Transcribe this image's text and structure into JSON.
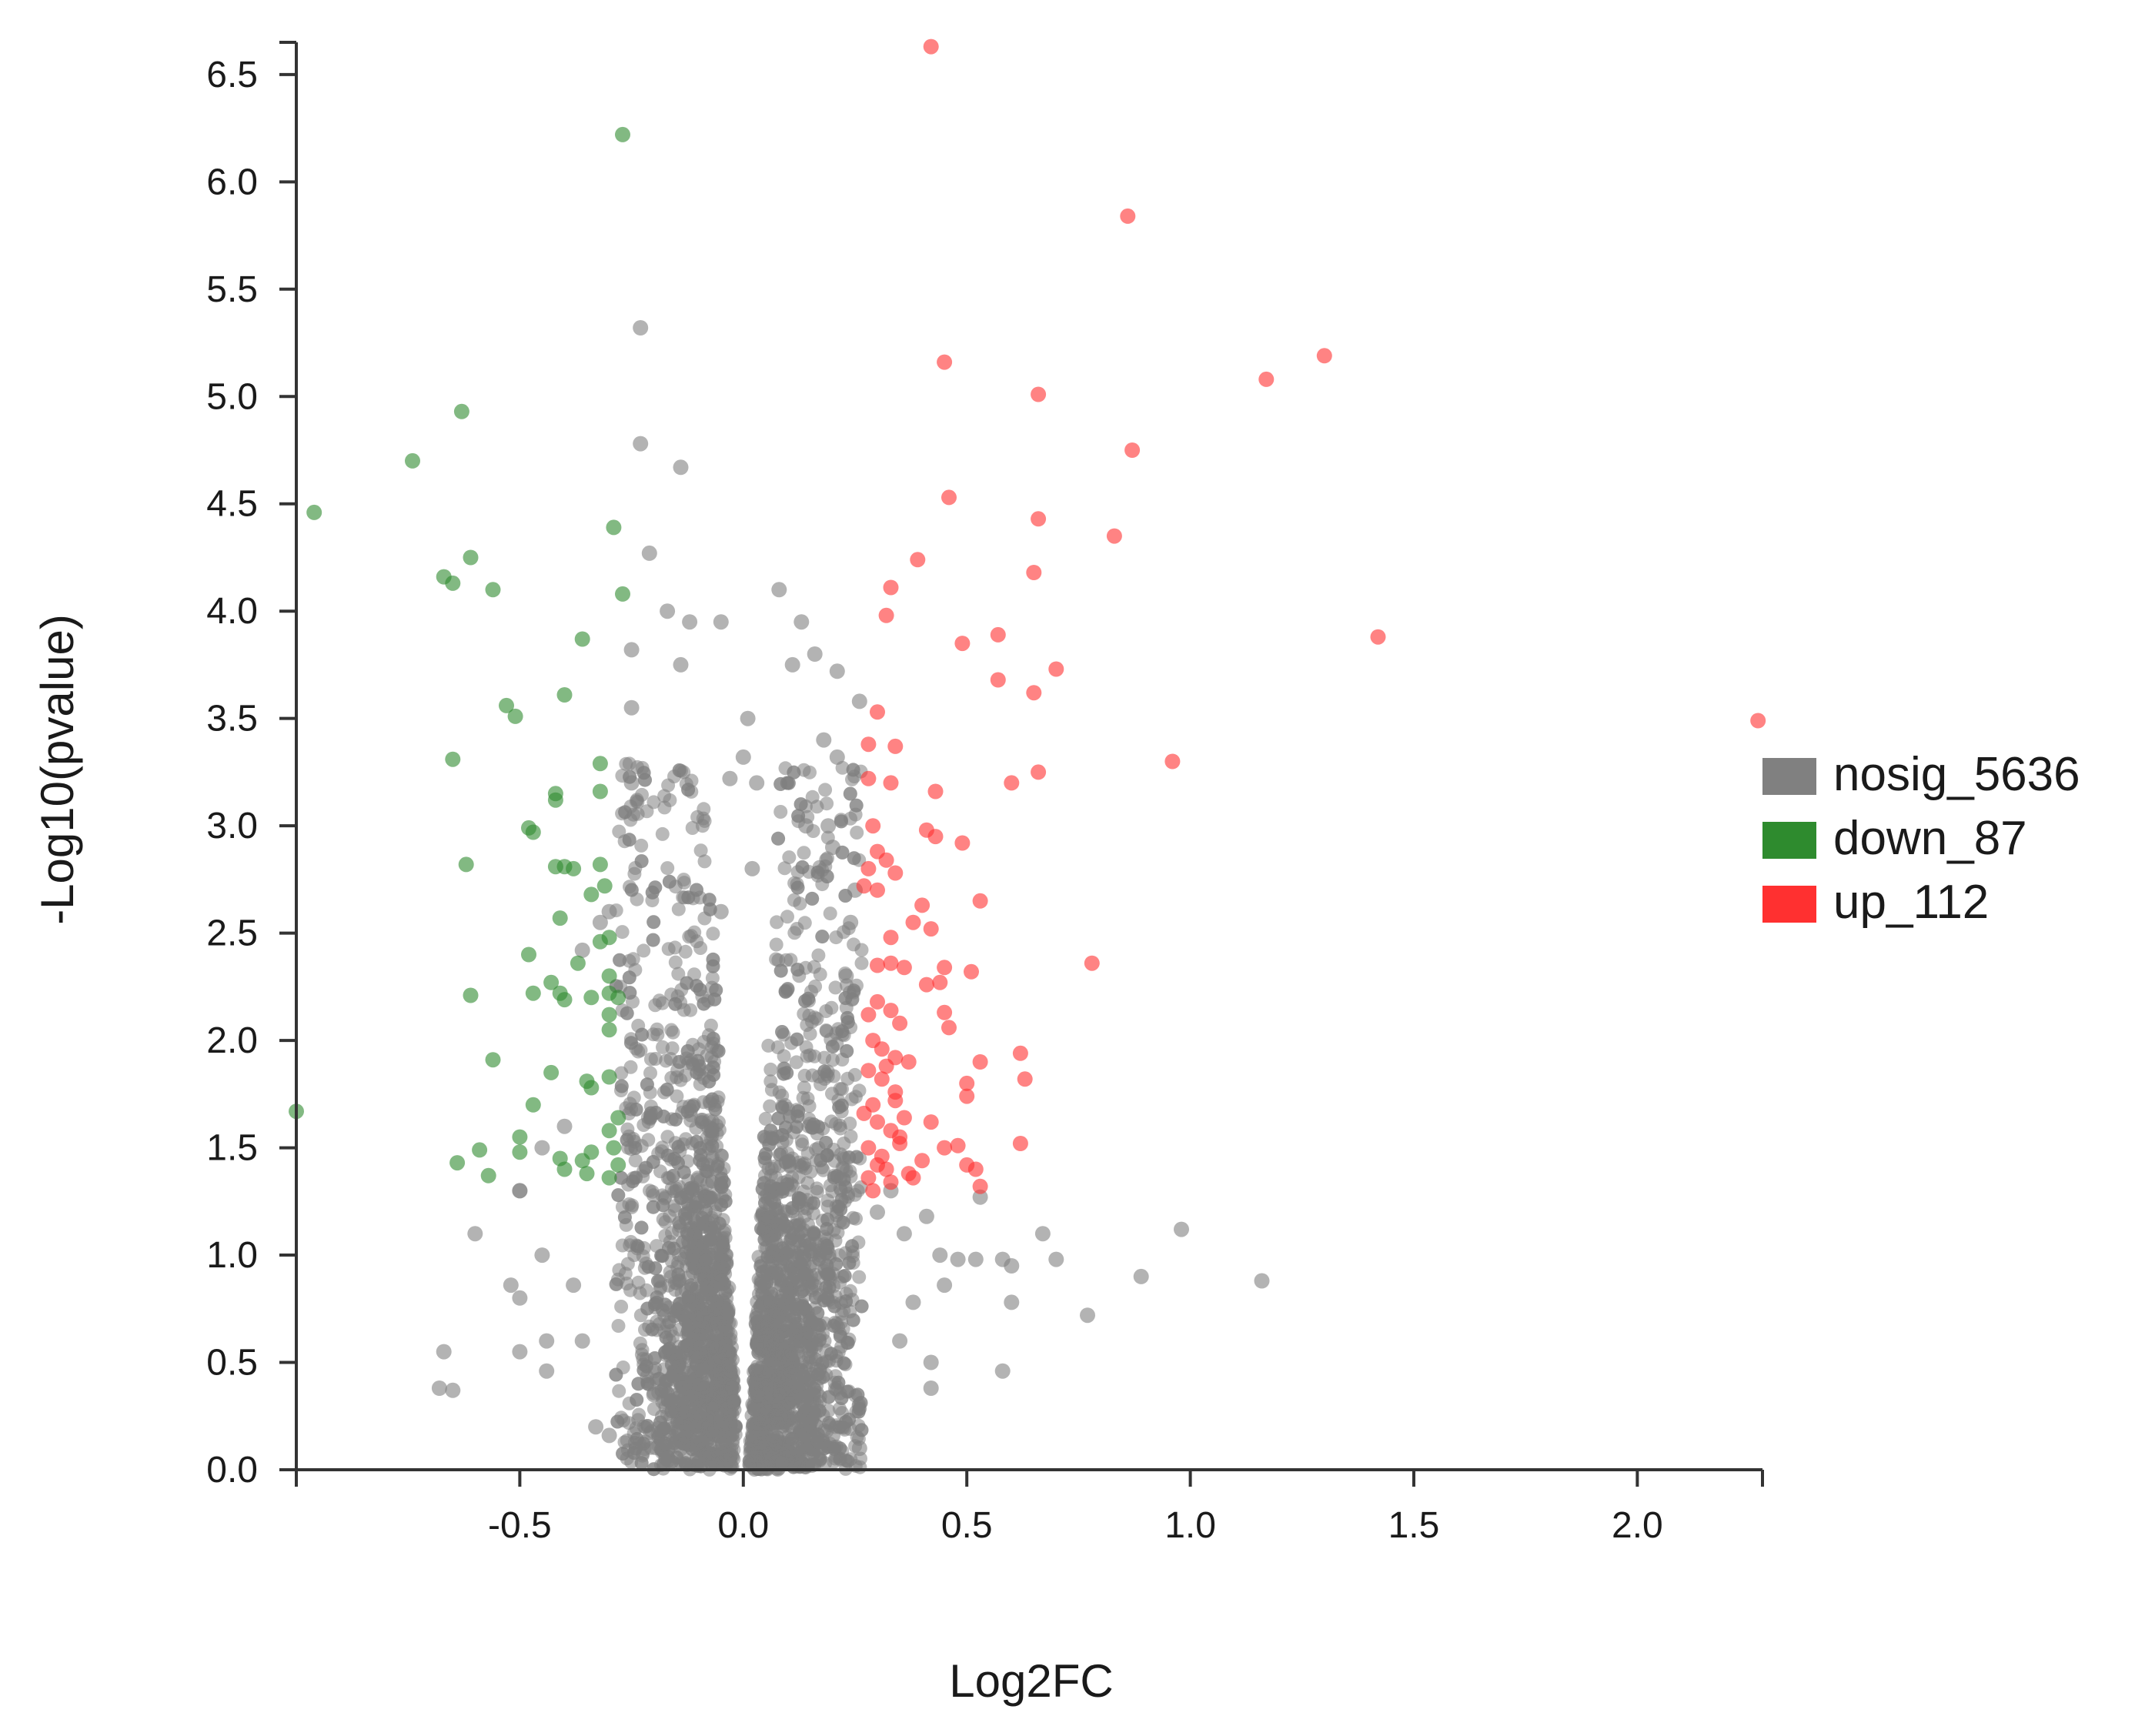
{
  "chart_data": {
    "type": "scatter",
    "title": "",
    "xlabel": "Log2FC",
    "ylabel": "-Log10(pvalue)",
    "xlim": [
      -1.0,
      2.28
    ],
    "ylim": [
      0,
      6.65
    ],
    "x_ticks": [
      -0.5,
      0.0,
      0.5,
      1.0,
      1.5,
      2.0
    ],
    "x_tick_labels": [
      "-0.5",
      "0.0",
      "0.5",
      "1.0",
      "1.5",
      "2.0"
    ],
    "y_ticks": [
      0.0,
      0.5,
      1.0,
      1.5,
      2.0,
      2.5,
      3.0,
      3.5,
      4.0,
      4.5,
      5.0,
      5.5,
      6.0,
      6.5
    ],
    "y_tick_labels": [
      "0.0",
      "0.5",
      "1.0",
      "1.5",
      "2.0",
      "2.5",
      "3.0",
      "3.5",
      "4.0",
      "4.5",
      "5.0",
      "5.5",
      "6.0",
      "6.5"
    ],
    "grid": false,
    "legend_position": "right",
    "series": [
      {
        "name": "nosig_5636",
        "color": "#808080",
        "count": 5636,
        "points": [
          [
            -0.23,
            5.32
          ],
          [
            -0.23,
            4.78
          ],
          [
            -0.14,
            4.67
          ],
          [
            -0.21,
            4.27
          ],
          [
            -0.17,
            4.0
          ],
          [
            -0.12,
            3.95
          ],
          [
            0.08,
            4.1
          ],
          [
            0.13,
            3.95
          ],
          [
            -0.05,
            3.95
          ],
          [
            0.16,
            3.8
          ],
          [
            0.21,
            3.72
          ],
          [
            -0.25,
            3.82
          ],
          [
            0.01,
            3.5
          ],
          [
            0.11,
            3.75
          ],
          [
            -0.14,
            3.75
          ],
          [
            0.18,
            3.4
          ],
          [
            -0.25,
            3.55
          ],
          [
            0.21,
            3.32
          ],
          [
            0.26,
            3.58
          ],
          [
            -0.25,
            3.2
          ],
          [
            0.14,
            3.0
          ],
          [
            0.19,
            3.0
          ],
          [
            0.2,
            2.9
          ],
          [
            -0.3,
            2.6
          ],
          [
            -0.32,
            2.55
          ],
          [
            -0.36,
            2.42
          ],
          [
            0.25,
            2.7
          ],
          [
            0.24,
            2.55
          ],
          [
            0.23,
            2.3
          ],
          [
            -0.4,
            1.6
          ],
          [
            -0.45,
            1.5
          ],
          [
            -0.5,
            1.3
          ],
          [
            -0.45,
            1.0
          ],
          [
            -0.5,
            0.8
          ],
          [
            -0.52,
            0.86
          ],
          [
            -0.44,
            0.6
          ],
          [
            -0.6,
            1.1
          ],
          [
            -0.5,
            1.3
          ],
          [
            0.3,
            1.2
          ],
          [
            0.33,
            1.3
          ],
          [
            0.36,
            1.1
          ],
          [
            0.41,
            1.18
          ],
          [
            0.44,
            1.0
          ],
          [
            0.48,
            0.98
          ],
          [
            0.53,
            1.27
          ],
          [
            0.52,
            0.98
          ],
          [
            0.58,
            0.98
          ],
          [
            0.6,
            0.95
          ],
          [
            0.6,
            0.78
          ],
          [
            0.58,
            0.46
          ],
          [
            0.67,
            1.1
          ],
          [
            0.7,
            0.98
          ],
          [
            0.77,
            0.72
          ],
          [
            0.89,
            0.9
          ],
          [
            0.98,
            1.12
          ],
          [
            1.16,
            0.88
          ],
          [
            0.45,
            0.86
          ],
          [
            0.38,
            0.78
          ],
          [
            0.42,
            0.5
          ],
          [
            0.35,
            0.6
          ],
          [
            0.42,
            0.38
          ],
          [
            -0.67,
            0.55
          ],
          [
            -0.68,
            0.38
          ],
          [
            -0.65,
            0.37
          ],
          [
            -0.5,
            0.55
          ],
          [
            -0.44,
            0.46
          ],
          [
            -0.38,
            0.86
          ],
          [
            -0.36,
            0.6
          ],
          [
            -0.33,
            0.2
          ],
          [
            -0.3,
            0.16
          ],
          [
            0.26,
            0.1
          ],
          [
            0.2,
            0.16
          ],
          [
            0.15,
            0.22
          ],
          [
            -0.15,
            0.18
          ],
          [
            -0.2,
            0.35
          ],
          [
            0.0,
            3.32
          ],
          [
            0.03,
            3.2
          ],
          [
            0.02,
            2.8
          ],
          [
            -0.03,
            3.22
          ],
          [
            -0.05,
            2.6
          ]
        ]
      },
      {
        "name": "down_87",
        "color": "#2e8b2e",
        "count": 87,
        "points": [
          [
            -0.27,
            6.22
          ],
          [
            -0.63,
            4.93
          ],
          [
            -0.74,
            4.7
          ],
          [
            -0.96,
            4.46
          ],
          [
            -0.29,
            4.39
          ],
          [
            -0.61,
            4.25
          ],
          [
            -0.67,
            4.16
          ],
          [
            -0.65,
            4.13
          ],
          [
            -0.56,
            4.1
          ],
          [
            -0.27,
            4.08
          ],
          [
            -0.36,
            3.87
          ],
          [
            -0.4,
            3.61
          ],
          [
            -0.53,
            3.56
          ],
          [
            -0.51,
            3.51
          ],
          [
            -0.65,
            3.31
          ],
          [
            -0.32,
            3.29
          ],
          [
            -0.42,
            3.15
          ],
          [
            -0.42,
            3.12
          ],
          [
            -0.32,
            3.16
          ],
          [
            -0.48,
            2.99
          ],
          [
            -0.47,
            2.97
          ],
          [
            -0.62,
            2.82
          ],
          [
            -0.42,
            2.81
          ],
          [
            -0.4,
            2.81
          ],
          [
            -0.38,
            2.8
          ],
          [
            -0.32,
            2.82
          ],
          [
            -0.31,
            2.72
          ],
          [
            -0.34,
            2.68
          ],
          [
            -0.41,
            2.57
          ],
          [
            -0.32,
            2.46
          ],
          [
            -0.3,
            2.48
          ],
          [
            -0.48,
            2.4
          ],
          [
            -0.37,
            2.36
          ],
          [
            -0.3,
            2.3
          ],
          [
            -0.43,
            2.27
          ],
          [
            -0.47,
            2.22
          ],
          [
            -0.41,
            2.22
          ],
          [
            -0.4,
            2.19
          ],
          [
            -0.34,
            2.2
          ],
          [
            -0.3,
            2.22
          ],
          [
            -0.28,
            2.2
          ],
          [
            -0.61,
            2.21
          ],
          [
            -0.3,
            2.12
          ],
          [
            -0.3,
            2.05
          ],
          [
            -0.56,
            1.91
          ],
          [
            -0.43,
            1.85
          ],
          [
            -0.35,
            1.81
          ],
          [
            -0.34,
            1.78
          ],
          [
            -0.3,
            1.83
          ],
          [
            -0.47,
            1.7
          ],
          [
            -0.28,
            1.64
          ],
          [
            -0.3,
            1.58
          ],
          [
            -0.29,
            1.5
          ],
          [
            -0.34,
            1.48
          ],
          [
            -0.36,
            1.44
          ],
          [
            -0.41,
            1.45
          ],
          [
            -0.5,
            1.55
          ],
          [
            -0.5,
            1.48
          ],
          [
            -0.59,
            1.49
          ],
          [
            -0.64,
            1.43
          ],
          [
            -0.57,
            1.37
          ],
          [
            -0.4,
            1.4
          ],
          [
            -0.35,
            1.38
          ],
          [
            -0.3,
            1.36
          ],
          [
            -0.28,
            1.42
          ],
          [
            -1.0,
            1.67
          ]
        ]
      },
      {
        "name": "up_112",
        "color": "#ff3030",
        "count": 112,
        "points": [
          [
            0.42,
            6.63
          ],
          [
            0.86,
            5.84
          ],
          [
            1.3,
            5.19
          ],
          [
            0.45,
            5.16
          ],
          [
            1.17,
            5.08
          ],
          [
            0.66,
            5.01
          ],
          [
            0.87,
            4.75
          ],
          [
            0.46,
            4.53
          ],
          [
            0.66,
            4.43
          ],
          [
            0.83,
            4.35
          ],
          [
            0.39,
            4.24
          ],
          [
            0.65,
            4.18
          ],
          [
            0.33,
            4.11
          ],
          [
            0.32,
            3.98
          ],
          [
            0.57,
            3.89
          ],
          [
            1.42,
            3.88
          ],
          [
            0.49,
            3.85
          ],
          [
            0.7,
            3.73
          ],
          [
            0.57,
            3.68
          ],
          [
            0.65,
            3.62
          ],
          [
            0.3,
            3.53
          ],
          [
            2.27,
            3.49
          ],
          [
            0.28,
            3.38
          ],
          [
            0.34,
            3.37
          ],
          [
            0.96,
            3.3
          ],
          [
            0.66,
            3.25
          ],
          [
            0.28,
            3.22
          ],
          [
            0.33,
            3.2
          ],
          [
            0.6,
            3.2
          ],
          [
            0.43,
            3.16
          ],
          [
            0.29,
            3.0
          ],
          [
            0.41,
            2.98
          ],
          [
            0.43,
            2.95
          ],
          [
            0.49,
            2.92
          ],
          [
            0.3,
            2.88
          ],
          [
            0.32,
            2.84
          ],
          [
            0.28,
            2.8
          ],
          [
            0.34,
            2.78
          ],
          [
            0.27,
            2.72
          ],
          [
            0.3,
            2.7
          ],
          [
            0.53,
            2.65
          ],
          [
            0.4,
            2.63
          ],
          [
            0.38,
            2.55
          ],
          [
            0.42,
            2.52
          ],
          [
            0.33,
            2.48
          ],
          [
            0.78,
            2.36
          ],
          [
            0.3,
            2.35
          ],
          [
            0.33,
            2.36
          ],
          [
            0.36,
            2.34
          ],
          [
            0.45,
            2.34
          ],
          [
            0.51,
            2.32
          ],
          [
            0.41,
            2.26
          ],
          [
            0.44,
            2.27
          ],
          [
            0.3,
            2.18
          ],
          [
            0.33,
            2.14
          ],
          [
            0.28,
            2.12
          ],
          [
            0.35,
            2.08
          ],
          [
            0.45,
            2.13
          ],
          [
            0.46,
            2.06
          ],
          [
            0.29,
            2.0
          ],
          [
            0.31,
            1.96
          ],
          [
            0.34,
            1.92
          ],
          [
            0.32,
            1.88
          ],
          [
            0.37,
            1.9
          ],
          [
            0.62,
            1.94
          ],
          [
            0.53,
            1.9
          ],
          [
            0.28,
            1.86
          ],
          [
            0.31,
            1.82
          ],
          [
            0.63,
            1.82
          ],
          [
            0.5,
            1.8
          ],
          [
            0.34,
            1.76
          ],
          [
            0.5,
            1.74
          ],
          [
            0.29,
            1.7
          ],
          [
            0.34,
            1.72
          ],
          [
            0.27,
            1.66
          ],
          [
            0.3,
            1.62
          ],
          [
            0.36,
            1.64
          ],
          [
            0.42,
            1.62
          ],
          [
            0.33,
            1.58
          ],
          [
            0.35,
            1.55
          ],
          [
            0.28,
            1.5
          ],
          [
            0.31,
            1.46
          ],
          [
            0.35,
            1.52
          ],
          [
            0.45,
            1.5
          ],
          [
            0.48,
            1.51
          ],
          [
            0.62,
            1.52
          ],
          [
            0.3,
            1.42
          ],
          [
            0.32,
            1.4
          ],
          [
            0.37,
            1.38
          ],
          [
            0.5,
            1.42
          ],
          [
            0.52,
            1.4
          ],
          [
            0.28,
            1.36
          ],
          [
            0.33,
            1.34
          ],
          [
            0.38,
            1.36
          ],
          [
            0.53,
            1.32
          ],
          [
            0.29,
            1.3
          ],
          [
            0.4,
            1.44
          ]
        ]
      }
    ]
  }
}
